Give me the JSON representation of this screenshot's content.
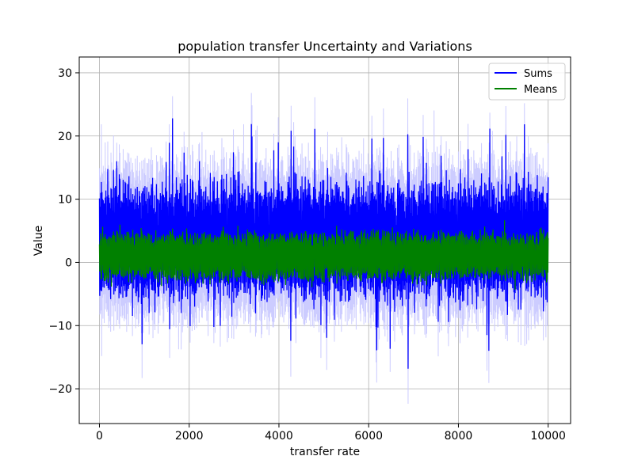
{
  "chart_data": {
    "type": "line",
    "title": "population transfer Uncertainty and Variations",
    "xlabel": "transfer rate",
    "ylabel": "Value",
    "xlim": [
      -450,
      10500
    ],
    "ylim": [
      -25.5,
      32.5
    ],
    "xticks": [
      0,
      2000,
      4000,
      6000,
      8000,
      10000
    ],
    "xtick_labels": [
      "0",
      "2000",
      "4000",
      "6000",
      "8000",
      "10000"
    ],
    "yticks": [
      -20,
      -10,
      0,
      10,
      20,
      30
    ],
    "ytick_labels": [
      "−20",
      "−10",
      "0",
      "10",
      "20",
      "30"
    ],
    "grid": true,
    "legend_position": "top-right",
    "x_range": [
      0,
      10000
    ],
    "n_points": 10000,
    "series": [
      {
        "name": "Sums",
        "color": "#0000ff",
        "center": 2.5,
        "typical_band": [
          -5,
          12
        ],
        "extremes": [
          -17.7,
          24.7
        ]
      },
      {
        "name": "Means",
        "color": "#008000",
        "center": 1,
        "typical_band": [
          -2.5,
          4.5
        ],
        "extremes": [
          -5,
          7
        ]
      }
    ],
    "uncertainty_band": {
      "color": "#ccccff",
      "extremes": [
        -23,
        30
      ]
    }
  }
}
